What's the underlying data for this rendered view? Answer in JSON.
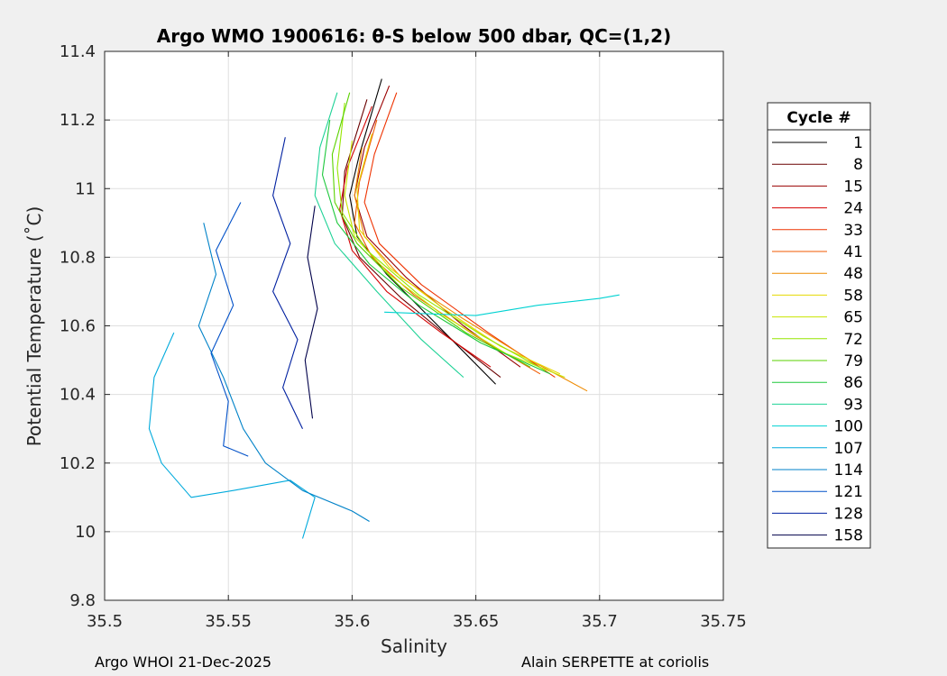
{
  "chart_data": {
    "type": "line",
    "title": "Argo WMO 1900616: θ-S below 500 dbar,  QC=(1,2)",
    "xlabel": "Salinity",
    "ylabel": "Potential Temperature (˚C)",
    "xlim": [
      35.5,
      35.75
    ],
    "ylim": [
      9.8,
      11.4
    ],
    "xticks": [
      35.5,
      35.55,
      35.6,
      35.65,
      35.7,
      35.75
    ],
    "xtick_labels": [
      "35.5",
      "35.55",
      "35.6",
      "35.65",
      "35.7",
      "35.75"
    ],
    "yticks": [
      9.8,
      10,
      10.2,
      10.4,
      10.6,
      10.8,
      11,
      11.2,
      11.4
    ],
    "ytick_labels": [
      "9.8",
      "10",
      "10.2",
      "10.4",
      "10.6",
      "10.8",
      "11",
      "11.2",
      "11.4"
    ],
    "grid": true,
    "legend_title": "Cycle #",
    "legend_position": "right-outside",
    "series": [
      {
        "name": "1",
        "color": "#000000",
        "points": [
          [
            35.612,
            11.32
          ],
          [
            35.603,
            11.1
          ],
          [
            35.599,
            10.98
          ],
          [
            35.602,
            10.86
          ],
          [
            35.614,
            10.75
          ],
          [
            35.632,
            10.62
          ],
          [
            35.658,
            10.43
          ]
        ]
      },
      {
        "name": "8",
        "color": "#6a0000",
        "points": [
          [
            35.606,
            11.26
          ],
          [
            35.597,
            11.05
          ],
          [
            35.596,
            10.92
          ],
          [
            35.603,
            10.8
          ],
          [
            35.62,
            10.68
          ],
          [
            35.642,
            10.55
          ],
          [
            35.66,
            10.45
          ]
        ]
      },
      {
        "name": "15",
        "color": "#9a0000",
        "points": [
          [
            35.615,
            11.3
          ],
          [
            35.605,
            11.12
          ],
          [
            35.601,
            10.98
          ],
          [
            35.606,
            10.86
          ],
          [
            35.622,
            10.74
          ],
          [
            35.645,
            10.6
          ],
          [
            35.668,
            10.48
          ]
        ]
      },
      {
        "name": "24",
        "color": "#d40000",
        "points": [
          [
            35.608,
            11.24
          ],
          [
            35.598,
            11.06
          ],
          [
            35.595,
            10.94
          ],
          [
            35.6,
            10.82
          ],
          [
            35.614,
            10.7
          ],
          [
            35.636,
            10.58
          ],
          [
            35.656,
            10.48
          ]
        ]
      },
      {
        "name": "33",
        "color": "#ee3200",
        "points": [
          [
            35.618,
            11.28
          ],
          [
            35.609,
            11.1
          ],
          [
            35.605,
            10.96
          ],
          [
            35.611,
            10.84
          ],
          [
            35.628,
            10.72
          ],
          [
            35.655,
            10.58
          ],
          [
            35.682,
            10.45
          ]
        ]
      },
      {
        "name": "41",
        "color": "#f05a00",
        "points": [
          [
            35.61,
            11.2
          ],
          [
            35.603,
            11.02
          ],
          [
            35.601,
            10.9
          ],
          [
            35.608,
            10.8
          ],
          [
            35.625,
            10.69
          ],
          [
            35.65,
            10.57
          ],
          [
            35.676,
            10.46
          ]
        ]
      },
      {
        "name": "48",
        "color": "#ee8a00",
        "points": [
          [
            35.604,
            11.12
          ],
          [
            35.601,
            10.98
          ],
          [
            35.605,
            10.86
          ],
          [
            35.62,
            10.74
          ],
          [
            35.645,
            10.62
          ],
          [
            35.672,
            10.5
          ],
          [
            35.695,
            10.41
          ]
        ]
      },
      {
        "name": "58",
        "color": "#e6d800",
        "points": [
          [
            35.608,
            11.16
          ],
          [
            35.602,
            11.0
          ],
          [
            35.603,
            10.88
          ],
          [
            35.615,
            10.77
          ],
          [
            35.637,
            10.65
          ],
          [
            35.66,
            10.54
          ],
          [
            35.684,
            10.46
          ]
        ]
      },
      {
        "name": "65",
        "color": "#c8e600",
        "points": [
          [
            35.6,
            11.14
          ],
          [
            35.597,
            10.98
          ],
          [
            35.601,
            10.86
          ],
          [
            35.615,
            10.75
          ],
          [
            35.637,
            10.63
          ],
          [
            35.662,
            10.52
          ],
          [
            35.686,
            10.45
          ]
        ]
      },
      {
        "name": "72",
        "color": "#96e600",
        "points": [
          [
            35.597,
            11.25
          ],
          [
            35.594,
            11.06
          ],
          [
            35.596,
            10.93
          ],
          [
            35.606,
            10.82
          ],
          [
            35.627,
            10.69
          ],
          [
            35.653,
            10.57
          ],
          [
            35.678,
            10.47
          ]
        ]
      },
      {
        "name": "79",
        "color": "#5ad200",
        "points": [
          [
            35.599,
            11.28
          ],
          [
            35.592,
            11.1
          ],
          [
            35.593,
            10.96
          ],
          [
            35.602,
            10.84
          ],
          [
            35.62,
            10.71
          ],
          [
            35.646,
            10.58
          ],
          [
            35.672,
            10.48
          ]
        ]
      },
      {
        "name": "86",
        "color": "#1ec83c",
        "points": [
          [
            35.591,
            11.2
          ],
          [
            35.588,
            11.04
          ],
          [
            35.594,
            10.9
          ],
          [
            35.607,
            10.78
          ],
          [
            35.627,
            10.66
          ],
          [
            35.652,
            10.55
          ],
          [
            35.68,
            10.46
          ]
        ]
      },
      {
        "name": "93",
        "color": "#1ed296",
        "points": [
          [
            35.594,
            11.28
          ],
          [
            35.587,
            11.12
          ],
          [
            35.585,
            10.98
          ],
          [
            35.593,
            10.84
          ],
          [
            35.61,
            10.7
          ],
          [
            35.628,
            10.56
          ],
          [
            35.645,
            10.45
          ]
        ]
      },
      {
        "name": "100",
        "color": "#00d2d2",
        "points": [
          [
            35.613,
            10.64
          ],
          [
            35.65,
            10.63
          ],
          [
            35.675,
            10.66
          ],
          [
            35.7,
            10.68
          ],
          [
            35.708,
            10.69
          ]
        ]
      },
      {
        "name": "107",
        "color": "#00aadc",
        "points": [
          [
            35.528,
            10.58
          ],
          [
            35.52,
            10.45
          ],
          [
            35.518,
            10.3
          ],
          [
            35.523,
            10.2
          ],
          [
            35.535,
            10.1
          ],
          [
            35.552,
            10.12
          ],
          [
            35.575,
            10.15
          ],
          [
            35.585,
            10.1
          ],
          [
            35.58,
            9.98
          ]
        ]
      },
      {
        "name": "114",
        "color": "#0082c8",
        "points": [
          [
            35.54,
            10.9
          ],
          [
            35.545,
            10.75
          ],
          [
            35.538,
            10.6
          ],
          [
            35.548,
            10.45
          ],
          [
            35.556,
            10.3
          ],
          [
            35.565,
            10.2
          ],
          [
            35.58,
            10.12
          ],
          [
            35.6,
            10.06
          ],
          [
            35.607,
            10.03
          ]
        ]
      },
      {
        "name": "121",
        "color": "#0050c8",
        "points": [
          [
            35.555,
            10.96
          ],
          [
            35.545,
            10.82
          ],
          [
            35.552,
            10.66
          ],
          [
            35.543,
            10.52
          ],
          [
            35.55,
            10.38
          ],
          [
            35.548,
            10.25
          ],
          [
            35.558,
            10.22
          ]
        ]
      },
      {
        "name": "128",
        "color": "#0020a0",
        "points": [
          [
            35.573,
            11.15
          ],
          [
            35.568,
            10.98
          ],
          [
            35.575,
            10.84
          ],
          [
            35.568,
            10.7
          ],
          [
            35.578,
            10.56
          ],
          [
            35.572,
            10.42
          ],
          [
            35.58,
            10.3
          ]
        ]
      },
      {
        "name": "158",
        "color": "#00004a",
        "points": [
          [
            35.585,
            10.95
          ],
          [
            35.582,
            10.8
          ],
          [
            35.586,
            10.65
          ],
          [
            35.581,
            10.5
          ],
          [
            35.584,
            10.33
          ]
        ]
      }
    ],
    "footer_left": "Argo WHOI 21-Dec-2025",
    "footer_right": "Alain SERPETTE at coriolis"
  }
}
